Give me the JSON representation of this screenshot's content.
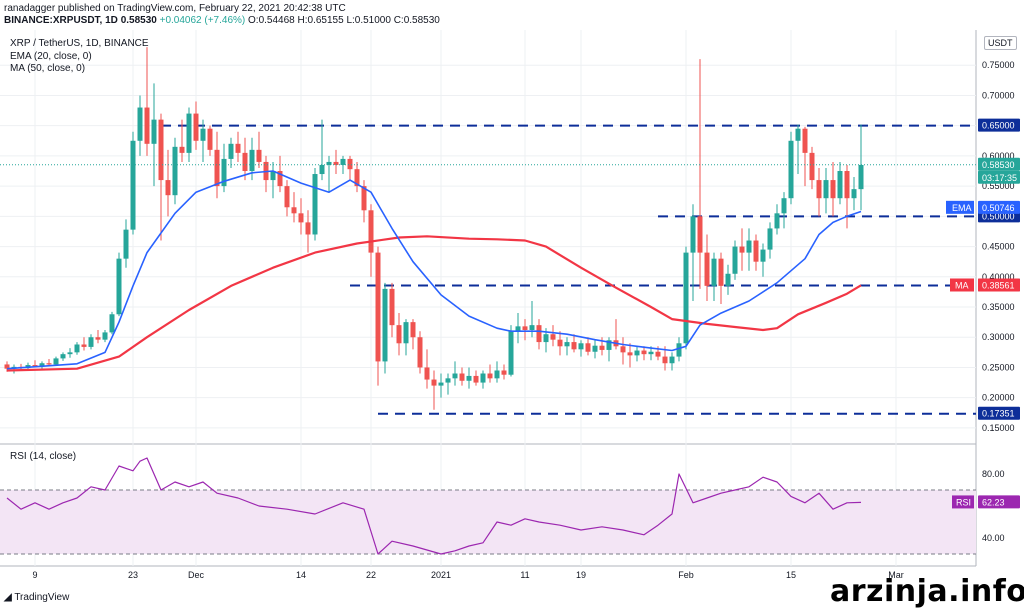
{
  "header": {
    "published": "ranadagger published on TradingView.com, February 22, 2021 20:42:38 UTC",
    "symbol": "BINANCE:XRPUSDT, 1D",
    "last": "0.58530",
    "change": "+0.04062 (+7.46%)",
    "ohlc": "O:0.54468 H:0.65155 L:0.51000 C:0.58530"
  },
  "legend": {
    "title": "XRP / TetherUS, 1D, BINANCE",
    "ema": "EMA (20, close, 0)",
    "ma": "MA (50, close, 0)",
    "rsi": "RSI (14, close)"
  },
  "currency_button": "USDT",
  "branding": {
    "tradingview": "TradingView",
    "watermark": "arzinja.info"
  },
  "colors": {
    "up": "#26a69a",
    "down": "#ef5350",
    "ema": "#2962ff",
    "ma": "#f23645",
    "rsi": "#9c27b0",
    "level": "#0d2e99",
    "band": "#f3e5f5"
  },
  "chart_data": [
    {
      "type": "candlestick",
      "title": "XRP / TetherUS, 1D, BINANCE",
      "ylim": [
        0.13,
        0.8
      ],
      "y_ticks": [
        "0.75000",
        "0.70000",
        "0.65000",
        "0.60000",
        "0.55000",
        "0.50000",
        "0.45000",
        "0.40000",
        "0.35000",
        "0.30000",
        "0.25000",
        "0.20000",
        "0.15000"
      ],
      "x_ticks": [
        "9",
        "23",
        "Dec",
        "14",
        "22",
        "2021",
        "11",
        "19",
        "Feb",
        "15",
        "Mar"
      ],
      "grid": true,
      "start_date": "2020-11-05",
      "ohlc": [
        [
          0.255,
          0.26,
          0.243,
          0.248
        ],
        [
          0.248,
          0.255,
          0.24,
          0.251
        ],
        [
          0.251,
          0.256,
          0.246,
          0.249
        ],
        [
          0.249,
          0.258,
          0.247,
          0.254
        ],
        [
          0.254,
          0.262,
          0.25,
          0.252
        ],
        [
          0.252,
          0.26,
          0.248,
          0.257
        ],
        [
          0.257,
          0.264,
          0.252,
          0.255
        ],
        [
          0.255,
          0.268,
          0.254,
          0.265
        ],
        [
          0.265,
          0.275,
          0.261,
          0.272
        ],
        [
          0.272,
          0.282,
          0.266,
          0.275
        ],
        [
          0.275,
          0.292,
          0.271,
          0.288
        ],
        [
          0.288,
          0.3,
          0.278,
          0.284
        ],
        [
          0.284,
          0.305,
          0.28,
          0.3
        ],
        [
          0.3,
          0.312,
          0.29,
          0.296
        ],
        [
          0.296,
          0.312,
          0.292,
          0.308
        ],
        [
          0.308,
          0.342,
          0.305,
          0.338
        ],
        [
          0.338,
          0.44,
          0.335,
          0.43
        ],
        [
          0.43,
          0.495,
          0.415,
          0.478
        ],
        [
          0.478,
          0.64,
          0.47,
          0.625
        ],
        [
          0.625,
          0.7,
          0.6,
          0.68
        ],
        [
          0.68,
          0.78,
          0.6,
          0.62
        ],
        [
          0.62,
          0.72,
          0.55,
          0.66
        ],
        [
          0.66,
          0.67,
          0.46,
          0.56
        ],
        [
          0.56,
          0.61,
          0.5,
          0.535
        ],
        [
          0.535,
          0.63,
          0.52,
          0.615
        ],
        [
          0.615,
          0.66,
          0.59,
          0.605
        ],
        [
          0.605,
          0.68,
          0.59,
          0.67
        ],
        [
          0.67,
          0.69,
          0.61,
          0.625
        ],
        [
          0.625,
          0.66,
          0.59,
          0.645
        ],
        [
          0.645,
          0.65,
          0.6,
          0.61
        ],
        [
          0.61,
          0.64,
          0.53,
          0.55
        ],
        [
          0.55,
          0.62,
          0.54,
          0.595
        ],
        [
          0.595,
          0.63,
          0.58,
          0.62
        ],
        [
          0.62,
          0.64,
          0.59,
          0.605
        ],
        [
          0.605,
          0.63,
          0.56,
          0.575
        ],
        [
          0.575,
          0.63,
          0.56,
          0.61
        ],
        [
          0.61,
          0.64,
          0.58,
          0.59
        ],
        [
          0.59,
          0.6,
          0.54,
          0.56
        ],
        [
          0.56,
          0.59,
          0.53,
          0.575
        ],
        [
          0.575,
          0.6,
          0.54,
          0.55
        ],
        [
          0.55,
          0.56,
          0.5,
          0.515
        ],
        [
          0.515,
          0.54,
          0.49,
          0.505
        ],
        [
          0.505,
          0.53,
          0.47,
          0.49
        ],
        [
          0.49,
          0.51,
          0.44,
          0.47
        ],
        [
          0.47,
          0.58,
          0.46,
          0.57
        ],
        [
          0.57,
          0.66,
          0.56,
          0.585
        ],
        [
          0.585,
          0.6,
          0.54,
          0.59
        ],
        [
          0.59,
          0.61,
          0.57,
          0.585
        ],
        [
          0.585,
          0.6,
          0.57,
          0.595
        ],
        [
          0.595,
          0.6,
          0.56,
          0.578
        ],
        [
          0.578,
          0.59,
          0.54,
          0.55
        ],
        [
          0.55,
          0.56,
          0.49,
          0.51
        ],
        [
          0.51,
          0.52,
          0.4,
          0.44
        ],
        [
          0.44,
          0.45,
          0.22,
          0.26
        ],
        [
          0.26,
          0.39,
          0.24,
          0.38
        ],
        [
          0.38,
          0.39,
          0.3,
          0.32
        ],
        [
          0.32,
          0.34,
          0.27,
          0.29
        ],
        [
          0.29,
          0.33,
          0.27,
          0.325
        ],
        [
          0.325,
          0.33,
          0.28,
          0.3
        ],
        [
          0.3,
          0.31,
          0.24,
          0.25
        ],
        [
          0.25,
          0.28,
          0.215,
          0.23
        ],
        [
          0.23,
          0.245,
          0.18,
          0.22
        ],
        [
          0.22,
          0.24,
          0.2,
          0.225
        ],
        [
          0.225,
          0.24,
          0.205,
          0.232
        ],
        [
          0.232,
          0.26,
          0.22,
          0.24
        ],
        [
          0.24,
          0.25,
          0.22,
          0.228
        ],
        [
          0.228,
          0.25,
          0.215,
          0.236
        ],
        [
          0.236,
          0.245,
          0.22,
          0.225
        ],
        [
          0.225,
          0.245,
          0.215,
          0.24
        ],
        [
          0.24,
          0.255,
          0.225,
          0.232
        ],
        [
          0.232,
          0.26,
          0.225,
          0.245
        ],
        [
          0.245,
          0.255,
          0.23,
          0.238
        ],
        [
          0.238,
          0.32,
          0.235,
          0.31
        ],
        [
          0.31,
          0.34,
          0.29,
          0.318
        ],
        [
          0.318,
          0.33,
          0.295,
          0.312
        ],
        [
          0.312,
          0.36,
          0.3,
          0.32
        ],
        [
          0.32,
          0.33,
          0.28,
          0.292
        ],
        [
          0.292,
          0.315,
          0.275,
          0.305
        ],
        [
          0.305,
          0.32,
          0.285,
          0.296
        ],
        [
          0.296,
          0.31,
          0.27,
          0.285
        ],
        [
          0.285,
          0.3,
          0.27,
          0.292
        ],
        [
          0.292,
          0.305,
          0.275,
          0.28
        ],
        [
          0.28,
          0.295,
          0.268,
          0.29
        ],
        [
          0.29,
          0.3,
          0.27,
          0.276
        ],
        [
          0.276,
          0.295,
          0.265,
          0.286
        ],
        [
          0.286,
          0.3,
          0.27,
          0.279
        ],
        [
          0.279,
          0.3,
          0.26,
          0.295
        ],
        [
          0.295,
          0.33,
          0.28,
          0.285
        ],
        [
          0.285,
          0.3,
          0.255,
          0.275
        ],
        [
          0.275,
          0.29,
          0.25,
          0.27
        ],
        [
          0.27,
          0.285,
          0.26,
          0.278
        ],
        [
          0.278,
          0.285,
          0.262,
          0.272
        ],
        [
          0.272,
          0.285,
          0.262,
          0.276
        ],
        [
          0.276,
          0.285,
          0.262,
          0.268
        ],
        [
          0.268,
          0.285,
          0.245,
          0.257
        ],
        [
          0.257,
          0.275,
          0.245,
          0.268
        ],
        [
          0.268,
          0.3,
          0.26,
          0.29
        ],
        [
          0.29,
          0.45,
          0.28,
          0.44
        ],
        [
          0.44,
          0.52,
          0.36,
          0.5
        ],
        [
          0.5,
          0.76,
          0.38,
          0.44
        ],
        [
          0.44,
          0.47,
          0.36,
          0.385
        ],
        [
          0.385,
          0.44,
          0.36,
          0.43
        ],
        [
          0.43,
          0.44,
          0.355,
          0.385
        ],
        [
          0.385,
          0.42,
          0.37,
          0.405
        ],
        [
          0.405,
          0.46,
          0.395,
          0.45
        ],
        [
          0.45,
          0.48,
          0.41,
          0.44
        ],
        [
          0.44,
          0.48,
          0.41,
          0.46
        ],
        [
          0.46,
          0.47,
          0.41,
          0.425
        ],
        [
          0.425,
          0.455,
          0.4,
          0.445
        ],
        [
          0.445,
          0.49,
          0.43,
          0.48
        ],
        [
          0.48,
          0.52,
          0.47,
          0.505
        ],
        [
          0.505,
          0.54,
          0.48,
          0.53
        ],
        [
          0.53,
          0.64,
          0.52,
          0.625
        ],
        [
          0.625,
          0.652,
          0.57,
          0.645
        ],
        [
          0.645,
          0.648,
          0.55,
          0.605
        ],
        [
          0.605,
          0.615,
          0.545,
          0.56
        ],
        [
          0.56,
          0.58,
          0.5,
          0.53
        ],
        [
          0.53,
          0.58,
          0.505,
          0.56
        ],
        [
          0.56,
          0.59,
          0.5,
          0.53
        ],
        [
          0.53,
          0.59,
          0.52,
          0.575
        ],
        [
          0.575,
          0.585,
          0.48,
          0.53
        ],
        [
          0.53,
          0.565,
          0.51,
          0.545
        ],
        [
          0.545,
          0.652,
          0.51,
          0.585
        ]
      ],
      "ema20": [
        [
          0,
          0.248
        ],
        [
          10,
          0.256
        ],
        [
          14,
          0.275
        ],
        [
          16,
          0.325
        ],
        [
          18,
          0.385
        ],
        [
          20,
          0.44
        ],
        [
          24,
          0.505
        ],
        [
          27,
          0.54
        ],
        [
          31,
          0.558
        ],
        [
          35,
          0.572
        ],
        [
          38,
          0.575
        ],
        [
          42,
          0.555
        ],
        [
          46,
          0.54
        ],
        [
          49,
          0.56
        ],
        [
          52,
          0.54
        ],
        [
          55,
          0.48
        ],
        [
          58,
          0.425
        ],
        [
          62,
          0.37
        ],
        [
          66,
          0.335
        ],
        [
          70,
          0.315
        ],
        [
          72,
          0.31
        ],
        [
          76,
          0.31
        ],
        [
          80,
          0.305
        ],
        [
          84,
          0.296
        ],
        [
          88,
          0.288
        ],
        [
          92,
          0.282
        ],
        [
          95,
          0.278
        ],
        [
          97,
          0.285
        ],
        [
          99,
          0.32
        ],
        [
          102,
          0.34
        ],
        [
          106,
          0.36
        ],
        [
          110,
          0.39
        ],
        [
          114,
          0.43
        ],
        [
          116,
          0.47
        ],
        [
          118,
          0.49
        ],
        [
          120,
          0.5
        ],
        [
          122,
          0.508
        ]
      ],
      "ma50": [
        [
          0,
          0.245
        ],
        [
          10,
          0.248
        ],
        [
          16,
          0.268
        ],
        [
          20,
          0.3
        ],
        [
          26,
          0.345
        ],
        [
          32,
          0.385
        ],
        [
          38,
          0.415
        ],
        [
          44,
          0.44
        ],
        [
          50,
          0.455
        ],
        [
          56,
          0.465
        ],
        [
          60,
          0.467
        ],
        [
          66,
          0.463
        ],
        [
          70,
          0.462
        ],
        [
          74,
          0.46
        ],
        [
          77,
          0.45
        ],
        [
          82,
          0.415
        ],
        [
          87,
          0.382
        ],
        [
          92,
          0.35
        ],
        [
          95,
          0.33
        ],
        [
          100,
          0.322
        ],
        [
          104,
          0.317
        ],
        [
          108,
          0.312
        ],
        [
          110,
          0.315
        ],
        [
          113,
          0.338
        ],
        [
          117,
          0.357
        ],
        [
          120,
          0.372
        ],
        [
          122,
          0.386
        ]
      ],
      "levels": [
        {
          "value": 0.65,
          "from": 22,
          "label": "0.65000"
        },
        {
          "value": 0.5,
          "from": 93,
          "label": "0.50000"
        },
        {
          "value": 0.3855,
          "from": 49,
          "label": "0.38550"
        },
        {
          "value": 0.17351,
          "from": 53,
          "label": "0.17351"
        }
      ],
      "price_labels": {
        "last": "0.58530",
        "countdown": "03:17:35",
        "ema_tag": "EMA",
        "ema_value": "0.50746",
        "ma_tag": "MA",
        "ma_value": "0.38561"
      }
    },
    {
      "type": "line",
      "title": "RSI (14, close)",
      "ylim": [
        25,
        95
      ],
      "band": [
        30,
        70
      ],
      "y_ticks": [
        "80.00",
        "40.00"
      ],
      "series": [
        {
          "name": "RSI",
          "points": [
            [
              0,
              65
            ],
            [
              2,
              58
            ],
            [
              4,
              62
            ],
            [
              6,
              58
            ],
            [
              8,
              62
            ],
            [
              10,
              65
            ],
            [
              12,
              72
            ],
            [
              14,
              70
            ],
            [
              16,
              85
            ],
            [
              18,
              82
            ],
            [
              19,
              88
            ],
            [
              20,
              90
            ],
            [
              22,
              70
            ],
            [
              24,
              75
            ],
            [
              26,
              72
            ],
            [
              28,
              75
            ],
            [
              30,
              68
            ],
            [
              33,
              65
            ],
            [
              36,
              60
            ],
            [
              40,
              58
            ],
            [
              44,
              55
            ],
            [
              48,
              62
            ],
            [
              51,
              58
            ],
            [
              53,
              30
            ],
            [
              55,
              38
            ],
            [
              58,
              35
            ],
            [
              62,
              30
            ],
            [
              64,
              32
            ],
            [
              66,
              35
            ],
            [
              68,
              37
            ],
            [
              70,
              50
            ],
            [
              72,
              48
            ],
            [
              74,
              52
            ],
            [
              76,
              50
            ],
            [
              79,
              48
            ],
            [
              82,
              45
            ],
            [
              85,
              47
            ],
            [
              88,
              45
            ],
            [
              91,
              42
            ],
            [
              93,
              48
            ],
            [
              95,
              55
            ],
            [
              96,
              80
            ],
            [
              98,
              62
            ],
            [
              100,
              65
            ],
            [
              102,
              68
            ],
            [
              104,
              70
            ],
            [
              106,
              72
            ],
            [
              108,
              78
            ],
            [
              110,
              75
            ],
            [
              112,
              66
            ],
            [
              114,
              62
            ],
            [
              116,
              68
            ],
            [
              118,
              58
            ],
            [
              120,
              62
            ],
            [
              122,
              62.23
            ]
          ]
        }
      ],
      "price_labels": {
        "rsi_tag": "RSI",
        "rsi_value": "62.23"
      }
    }
  ]
}
